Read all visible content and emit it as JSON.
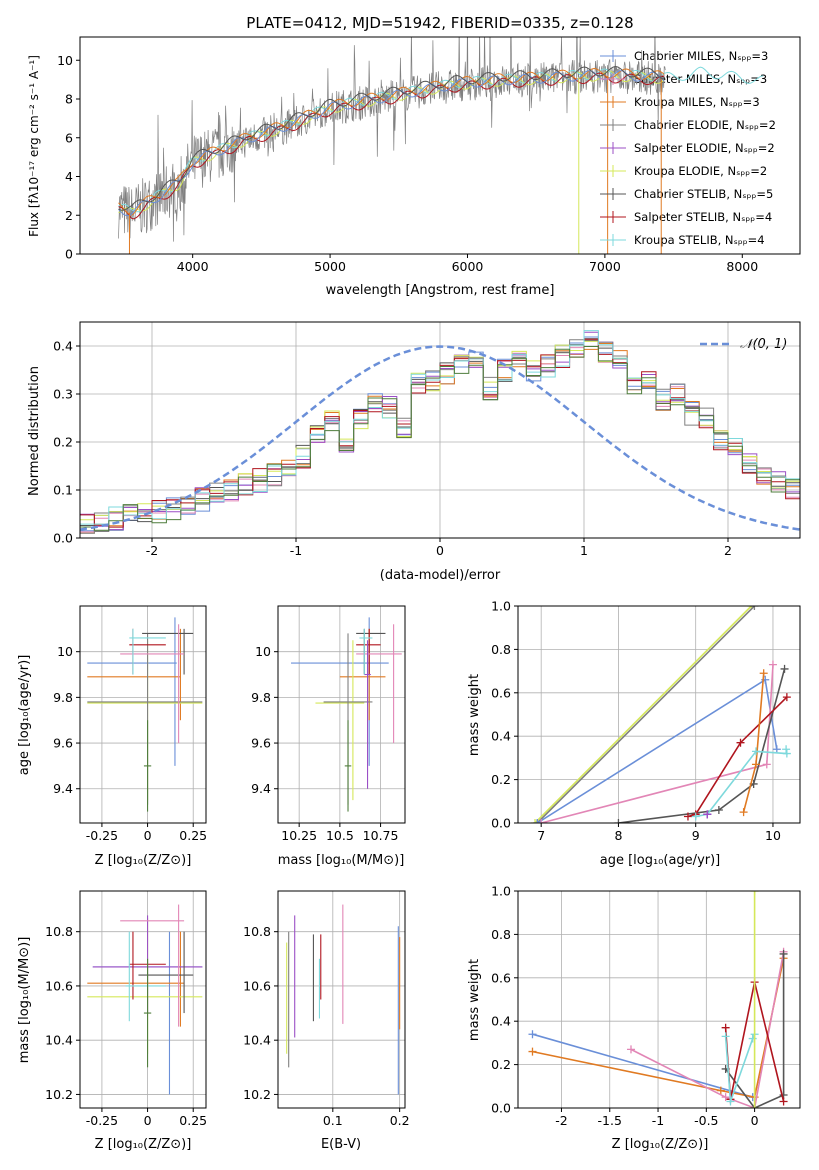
{
  "colors": {
    "blue": "#6a8fd8",
    "orange": "#e07a22",
    "pink": "#e286b6",
    "dgray": "#555555",
    "purple": "#9b4fc6",
    "yellow": "#d5e85a",
    "gray": "#808080",
    "red": "#b0151e",
    "cyan": "#7ed9dc",
    "green": "#4f7d3c",
    "grid": "#b0b0b0"
  },
  "chart_data": [
    {
      "id": "spectrum",
      "type": "line",
      "title": "PLATE=0412, MJD=51942, FIBERID=0335, z=0.128",
      "xlabel": "wavelength [Angstrom, rest frame]",
      "ylabel": "Flux [fλ10⁻¹⁷ erg cm⁻² s⁻¹ A⁻¹]",
      "xlim": [
        3180,
        8420
      ],
      "ylim": [
        0,
        11.2
      ],
      "xticks": [
        4000,
        5000,
        6000,
        7000,
        8000
      ],
      "yticks": [
        0,
        2,
        4,
        6,
        8,
        10
      ],
      "grid": false,
      "legend": "top-right",
      "legend_entries": [
        "Chabrier MILES, Nₛₚₚ=3",
        "Salpeter MILES, Nₛₚₚ=3",
        "Kroupa MILES, Nₛₚₚ=3",
        "Chabrier ELODIE, Nₛₚₚ=2",
        "Salpeter ELODIE, Nₛₚₚ=2",
        "Kroupa ELODIE, Nₛₚₚ=2",
        "Chabrier STELIB, Nₛₚₚ=5",
        "Salpeter STELIB, Nₛₚₚ=4",
        "Kroupa STELIB, Nₛₚₚ=4"
      ],
      "legend_colors": [
        "blue",
        "pink",
        "orange",
        "gray",
        "purple",
        "yellow",
        "dgray",
        "red",
        "cyan"
      ],
      "continuum": {
        "x": [
          3460,
          3560,
          3700,
          3900,
          4000,
          4100,
          4200,
          4400,
          4700,
          5000,
          5300,
          5600,
          5900,
          6200,
          6500,
          6700,
          7000,
          7300,
          7500,
          7700,
          8000,
          8200
        ],
        "y": [
          2.3,
          2.1,
          2.7,
          3.6,
          4.7,
          5.0,
          5.3,
          5.9,
          6.6,
          7.5,
          7.9,
          8.3,
          8.7,
          8.9,
          9.0,
          9.1,
          9.2,
          9.1,
          9.0,
          9.3,
          9.0,
          8.8
        ]
      },
      "model_offsets": [
        0.0,
        0.1,
        -0.1,
        0.15,
        0.05,
        0.25,
        -0.2,
        0.0,
        -0.3
      ]
    },
    {
      "id": "residual-histogram",
      "type": "line",
      "xlabel": "(data-model)/error",
      "ylabel": "Normed distribution",
      "xlim": [
        -2.5,
        2.5
      ],
      "ylim": [
        0,
        0.45
      ],
      "xticks": [
        -2,
        -1,
        0,
        1,
        2
      ],
      "yticks": [
        0.0,
        0.1,
        0.2,
        0.3,
        0.4
      ],
      "grid": true,
      "legend": "top-right",
      "legend_label": "𝒩(0, 1)",
      "bin_width": 0.1,
      "bin_start": -2.5,
      "hist_base": [
        0.03,
        0.035,
        0.04,
        0.045,
        0.05,
        0.055,
        0.06,
        0.07,
        0.08,
        0.09,
        0.1,
        0.11,
        0.12,
        0.13,
        0.15,
        0.17,
        0.21,
        0.24,
        0.2,
        0.25,
        0.28,
        0.27,
        0.23,
        0.32,
        0.33,
        0.34,
        0.36,
        0.37,
        0.31,
        0.35,
        0.38,
        0.35,
        0.36,
        0.38,
        0.4,
        0.41,
        0.39,
        0.37,
        0.32,
        0.33,
        0.29,
        0.3,
        0.26,
        0.25,
        0.2,
        0.19,
        0.16,
        0.13,
        0.12,
        0.1
      ],
      "series_colors": [
        "blue",
        "orange",
        "pink",
        "dgray",
        "purple",
        "yellow",
        "gray",
        "red",
        "cyan",
        "green"
      ]
    },
    {
      "id": "age-vs-Z",
      "type": "scatter",
      "xlabel": "Z [log₁₀(Z/Z⊙)]",
      "ylabel": "age  [log₁₀(age/yr)]",
      "xlim": [
        -0.37,
        0.32
      ],
      "ylim": [
        9.25,
        10.2
      ],
      "xticks": [
        -0.25,
        0.0,
        0.25
      ],
      "yticks": [
        9.4,
        9.6,
        9.8,
        10.0
      ],
      "grid": true
    },
    {
      "id": "age-vs-mass",
      "type": "scatter",
      "xlabel": "mass [log₁₀(M/M⊙)]",
      "xlim": [
        10.12,
        10.9
      ],
      "ylim": [
        9.25,
        10.2
      ],
      "xticks": [
        10.25,
        10.5,
        10.75
      ],
      "yticks": [
        9.4,
        9.6,
        9.8,
        10.0
      ],
      "grid": true
    },
    {
      "id": "massweight-vs-age",
      "type": "line",
      "xlabel": "age  [log₁₀(age/yr)]",
      "ylabel": "mass weight",
      "xlim": [
        6.7,
        10.35
      ],
      "ylim": [
        0,
        1.0
      ],
      "xticks": [
        7,
        8,
        9,
        10
      ],
      "yticks": [
        0.0,
        0.2,
        0.4,
        0.6,
        0.8,
        1.0
      ],
      "grid": true,
      "series": [
        {
          "color": "yellow",
          "x": [
            6.92,
            9.72
          ],
          "y": [
            0.0,
            1.0
          ]
        },
        {
          "color": "gray",
          "x": [
            6.95,
            9.76
          ],
          "y": [
            0.0,
            1.0
          ]
        },
        {
          "color": "blue",
          "x": [
            6.95,
            9.9,
            10.05
          ],
          "y": [
            0.0,
            0.66,
            0.34
          ]
        },
        {
          "color": "pink",
          "x": [
            7.0,
            9.92,
            10.0
          ],
          "y": [
            0.0,
            0.27,
            0.73
          ]
        },
        {
          "color": "dgray",
          "x": [
            8.0,
            9.3,
            9.75,
            10.15
          ],
          "y": [
            0.0,
            0.06,
            0.18,
            0.71
          ]
        },
        {
          "color": "red",
          "x": [
            8.9,
            9.0,
            9.58,
            10.18
          ],
          "y": [
            0.03,
            0.04,
            0.37,
            0.58
          ]
        },
        {
          "color": "orange",
          "x": [
            9.62,
            9.78,
            9.88
          ],
          "y": [
            0.05,
            0.27,
            0.69
          ]
        },
        {
          "color": "cyan",
          "x": [
            9.0,
            9.15,
            9.78,
            10.18,
            10.17
          ],
          "y": [
            0.03,
            0.04,
            0.33,
            0.32,
            0.34
          ]
        },
        {
          "color": "purple",
          "x": [
            9.15,
            9.15
          ],
          "y": [
            0.04,
            0.04
          ]
        }
      ]
    },
    {
      "id": "mass-vs-Z",
      "type": "scatter",
      "xlabel": "Z [log₁₀(Z/Z⊙)]",
      "ylabel": "mass [log₁₀(M/M⊙)]",
      "xlim": [
        -0.37,
        0.32
      ],
      "ylim": [
        10.15,
        10.95
      ],
      "xticks": [
        -0.25,
        0.0,
        0.25
      ],
      "yticks": [
        10.2,
        10.4,
        10.6,
        10.8
      ],
      "grid": true
    },
    {
      "id": "mass-vs-EBV",
      "type": "scatter",
      "xlabel": "E(B-V)",
      "xlim": [
        0.018,
        0.208
      ],
      "ylim": [
        10.15,
        10.95
      ],
      "xticks": [
        0.1,
        0.2
      ],
      "yticks": [
        10.2,
        10.4,
        10.6,
        10.8
      ],
      "grid": true
    },
    {
      "id": "massweight-vs-Z",
      "type": "line",
      "xlabel": "Z [log₁₀(Z/Z⊙)]",
      "ylabel": "mass weight",
      "xlim": [
        -2.45,
        0.47
      ],
      "ylim": [
        0,
        1.0
      ],
      "xticks": [
        -2.0,
        -1.5,
        -1.0,
        -0.5,
        0.0
      ],
      "yticks": [
        0.0,
        0.2,
        0.4,
        0.6,
        0.8,
        1.0
      ],
      "grid": true,
      "series": [
        {
          "color": "blue",
          "x": [
            -2.3,
            -0.02
          ],
          "y": [
            0.34,
            0.05
          ]
        },
        {
          "color": "orange",
          "x": [
            -2.3,
            -0.35,
            0.0,
            0.3
          ],
          "y": [
            0.26,
            0.08,
            0.05,
            0.69
          ]
        },
        {
          "color": "pink",
          "x": [
            -1.28,
            -0.3,
            0.0,
            0.3
          ],
          "y": [
            0.27,
            0.05,
            0.0,
            0.72
          ]
        },
        {
          "color": "dgray",
          "x": [
            -0.3,
            0.0,
            0.3,
            0.3
          ],
          "y": [
            0.18,
            0.0,
            0.06,
            0.71
          ]
        },
        {
          "color": "red",
          "x": [
            -0.3,
            -0.25,
            0.0,
            0.3
          ],
          "y": [
            0.37,
            0.04,
            0.58,
            0.03
          ]
        },
        {
          "color": "cyan",
          "x": [
            -0.3,
            -0.25,
            -0.02,
            0.0
          ],
          "y": [
            0.33,
            0.03,
            0.32,
            0.34
          ]
        },
        {
          "color": "yellow",
          "x": [
            0.0,
            0.0
          ],
          "y": [
            0.0,
            1.0
          ]
        }
      ]
    }
  ]
}
